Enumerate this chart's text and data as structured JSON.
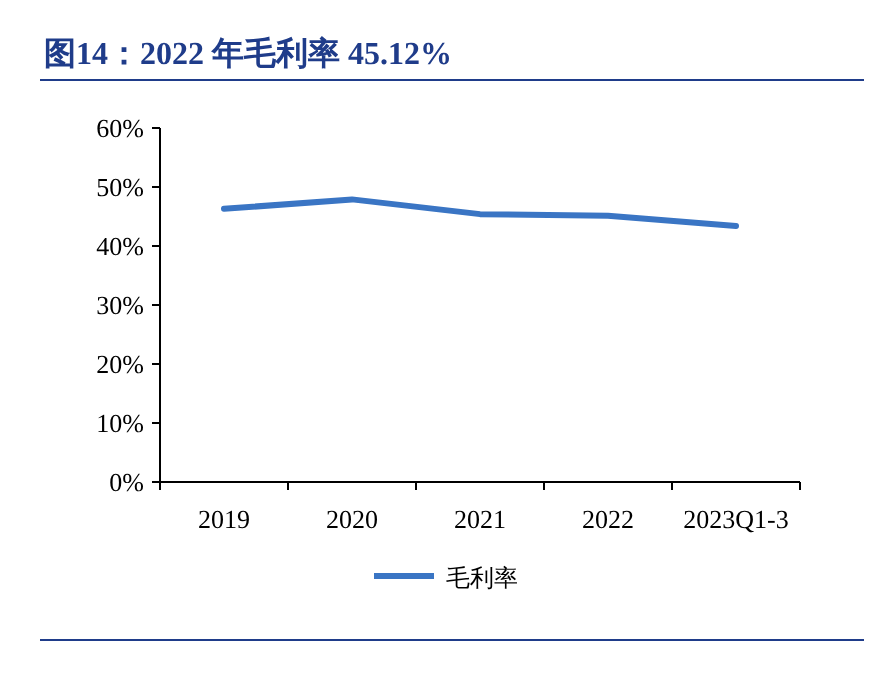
{
  "chart_data": {
    "type": "line",
    "title": "图14：2022 年毛利率 45.12%",
    "categories": [
      "2019",
      "2020",
      "2021",
      "2022",
      "2023Q1-3"
    ],
    "series": [
      {
        "name": "毛利率",
        "color": "#3a75c4",
        "values": [
          46.3,
          47.9,
          45.4,
          45.12,
          43.4
        ]
      }
    ],
    "ylim": [
      0,
      60
    ],
    "yticks": [
      {
        "value": 0,
        "label": "0%"
      },
      {
        "value": 10,
        "label": "10%"
      },
      {
        "value": 20,
        "label": "20%"
      },
      {
        "value": 30,
        "label": "30%"
      },
      {
        "value": 40,
        "label": "40%"
      },
      {
        "value": 50,
        "label": "50%"
      },
      {
        "value": 60,
        "label": "60%"
      }
    ],
    "legend": "bottom"
  }
}
